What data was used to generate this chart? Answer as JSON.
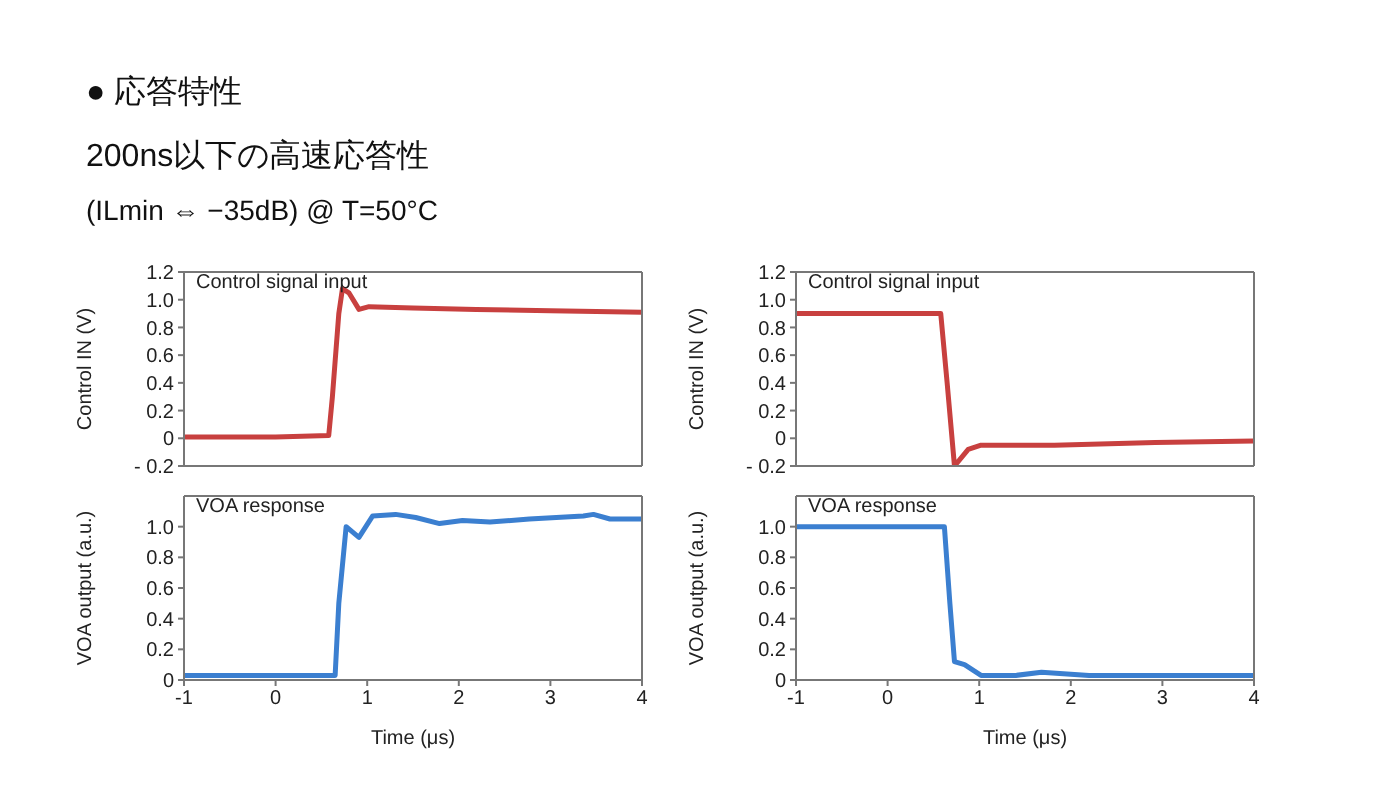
{
  "chart_data": [
    {
      "type": "line",
      "title": "● 応答特性",
      "subtitle": "200ns以下の高速応答性\n(ILmin ⇔ −35dB) @ T=50°C",
      "ylabel": "Control IN (V)",
      "annotations": [
        "Control signal input"
      ],
      "tick_labels": "y",
      "marker": "none",
      "x": [
        -1,
        0,
        0.58,
        0.62,
        0.69,
        0.73,
        0.8,
        0.91,
        1.02,
        1.5,
        2.19,
        3,
        4
      ],
      "series": [
        {
          "color": "#c8403f",
          "values": [
            0.01,
            0.01,
            0.02,
            0.3,
            0.9,
            1.08,
            1.05,
            0.93,
            0.95,
            0.94,
            0.93,
            0.92,
            0.91
          ]
        }
      ],
      "xlim": [
        -1,
        4
      ],
      "xticks": [
        -1,
        0,
        1,
        2,
        3,
        4
      ],
      "ylim": [
        -0.2,
        1.2
      ],
      "yticks": [
        {
          "value": -0.2,
          "label": "- 0.2"
        },
        {
          "value": 0,
          "label": "0"
        },
        {
          "value": 0.2,
          "label": "0.2"
        },
        {
          "value": 0.4,
          "label": "0.4"
        },
        {
          "value": 0.6,
          "label": "0.6"
        },
        {
          "value": 0.8,
          "label": "0.8"
        },
        {
          "value": 1,
          "label": "1.0"
        },
        {
          "value": 1.2,
          "label": "1.2"
        }
      ]
    },
    {
      "type": "line",
      "ylabel": "Control IN (V)",
      "annotations": [
        "Control signal input"
      ],
      "tick_labels": "y",
      "marker": "none",
      "x": [
        -1,
        0,
        0.58,
        0.65,
        0.73,
        0.88,
        1.02,
        1.82,
        2.92,
        4
      ],
      "series": [
        {
          "color": "#c8403f",
          "values": [
            0.9,
            0.9,
            0.9,
            0.4,
            -0.2,
            -0.08,
            -0.05,
            -0.05,
            -0.03,
            -0.02
          ]
        }
      ],
      "xlim": [
        -1,
        4
      ],
      "xticks": [
        -1,
        0,
        1,
        2,
        3,
        4
      ],
      "ylim": [
        -0.2,
        1.2
      ],
      "yticks": [
        {
          "value": -0.2,
          "label": "- 0.2"
        },
        {
          "value": 0,
          "label": "0"
        },
        {
          "value": 0.2,
          "label": "0.2"
        },
        {
          "value": 0.4,
          "label": "0.4"
        },
        {
          "value": 0.6,
          "label": "0.6"
        },
        {
          "value": 0.8,
          "label": "0.8"
        },
        {
          "value": 1,
          "label": "1.0"
        },
        {
          "value": 1.2,
          "label": "1.2"
        }
      ]
    },
    {
      "type": "line",
      "xlabel": "Time (μs)",
      "ylabel": "VOA output (a.u.)",
      "annotations": [
        "VOA response"
      ],
      "marker": "none",
      "x": [
        -1,
        0,
        0.65,
        0.69,
        0.77,
        0.91,
        1.06,
        1.31,
        1.53,
        1.79,
        2.04,
        2.34,
        2.77,
        3.36,
        3.47,
        3.65,
        4
      ],
      "series": [
        {
          "color": "#3b7fd0",
          "values": [
            0.03,
            0.03,
            0.03,
            0.5,
            1.0,
            0.93,
            1.07,
            1.08,
            1.06,
            1.02,
            1.04,
            1.03,
            1.05,
            1.07,
            1.08,
            1.05,
            1.05
          ]
        }
      ],
      "xlim": [
        -1,
        4
      ],
      "xticks": [
        -1,
        0,
        1,
        2,
        3,
        4
      ],
      "ylim": [
        0,
        1.2
      ],
      "yticks": [
        {
          "value": 0,
          "label": "0"
        },
        {
          "value": 0.2,
          "label": "0.2"
        },
        {
          "value": 0.4,
          "label": "0.4"
        },
        {
          "value": 0.6,
          "label": "0.6"
        },
        {
          "value": 0.8,
          "label": "0.8"
        },
        {
          "value": 1,
          "label": "1.0"
        }
      ]
    },
    {
      "type": "line",
      "xlabel": "Time (μs)",
      "ylabel": "VOA output (a.u.)",
      "annotations": [
        "VOA response"
      ],
      "marker": "none",
      "x": [
        -1,
        0,
        0.62,
        0.68,
        0.73,
        0.84,
        1.02,
        1.4,
        1.68,
        2.2,
        3,
        4
      ],
      "series": [
        {
          "color": "#3b7fd0",
          "values": [
            1.0,
            1.0,
            1.0,
            0.5,
            0.12,
            0.1,
            0.03,
            0.03,
            0.05,
            0.03,
            0.03,
            0.03
          ]
        }
      ],
      "xlim": [
        -1,
        4
      ],
      "xticks": [
        -1,
        0,
        1,
        2,
        3,
        4
      ],
      "ylim": [
        0,
        1.2
      ],
      "yticks": [
        {
          "value": 0,
          "label": "0"
        },
        {
          "value": 0.2,
          "label": "0.2"
        },
        {
          "value": 0.4,
          "label": "0.4"
        },
        {
          "value": 0.6,
          "label": "0.6"
        },
        {
          "value": 0.8,
          "label": "0.8"
        },
        {
          "value": 1,
          "label": "1.0"
        }
      ]
    }
  ]
}
